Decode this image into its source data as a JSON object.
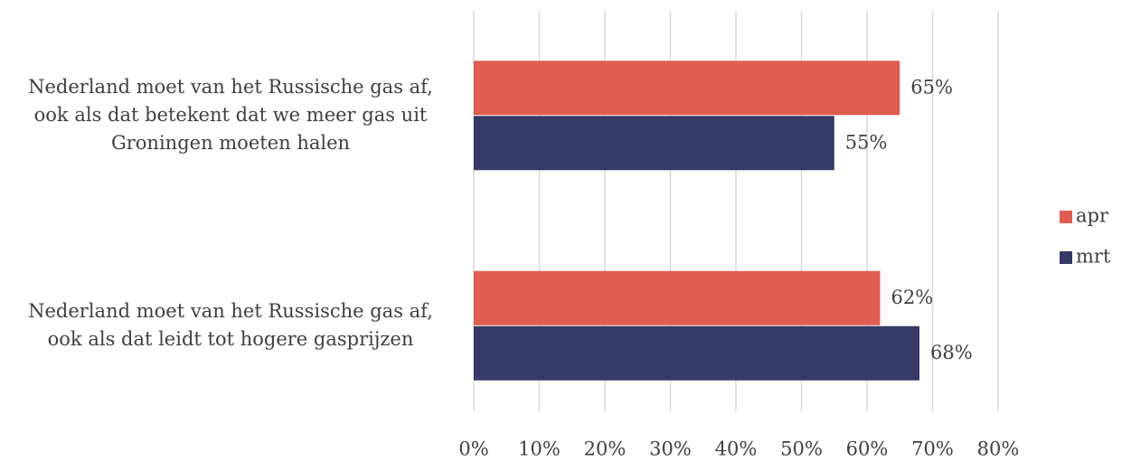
{
  "chart_data": {
    "type": "bar",
    "orientation": "horizontal",
    "categories": [
      [
        "Nederland moet van het Russische gas af,",
        "ook als dat betekent dat we meer gas uit",
        "Groningen moeten halen"
      ],
      [
        "Nederland moet van het Russische gas af,",
        "ook als dat leidt tot hogere gasprijzen"
      ]
    ],
    "series": [
      {
        "name": "apr",
        "color": "#df5d50",
        "values": [
          65,
          62
        ],
        "value_labels": [
          "65%",
          "62%"
        ]
      },
      {
        "name": "mrt",
        "color": "#363a66",
        "values": [
          55,
          68
        ],
        "value_labels": [
          "55%",
          "68%"
        ]
      }
    ],
    "xlim": [
      0,
      80
    ],
    "xticks": [
      {
        "value": 0,
        "label": "0%"
      },
      {
        "value": 10,
        "label": "10%"
      },
      {
        "value": 20,
        "label": "20%"
      },
      {
        "value": 30,
        "label": "30%"
      },
      {
        "value": 40,
        "label": "40%"
      },
      {
        "value": 50,
        "label": "50%"
      },
      {
        "value": 60,
        "label": "60%"
      },
      {
        "value": 70,
        "label": "70%"
      },
      {
        "value": 80,
        "label": "80%"
      }
    ],
    "grid": true,
    "legend": "right"
  }
}
